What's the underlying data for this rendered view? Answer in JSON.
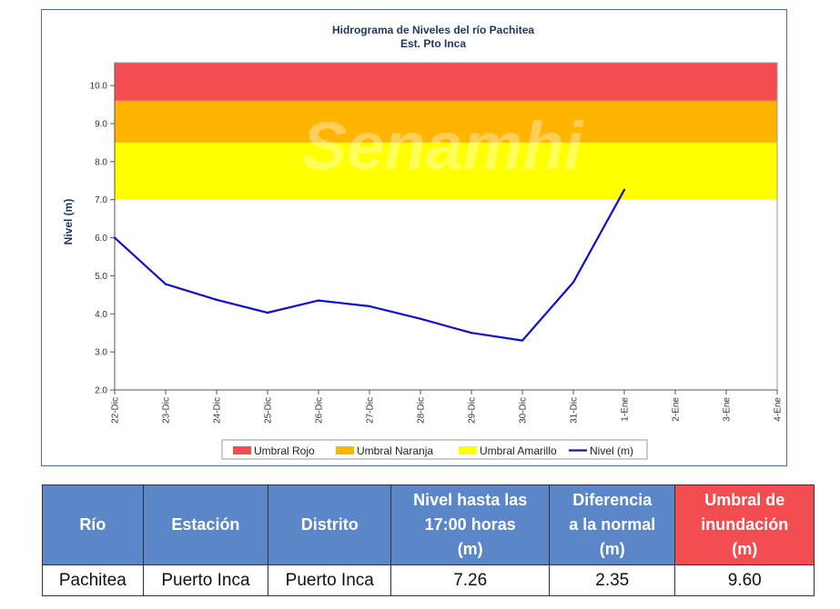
{
  "chart_data": {
    "type": "line",
    "title": "Hidrograma de Niveles del río Pachitea",
    "subtitle": "Est. Pto Inca",
    "ylabel": "Nivel (m)",
    "xlabel": "",
    "ylim": [
      2.0,
      10.6
    ],
    "yticks": [
      "2.0",
      "3.0",
      "4.0",
      "5.0",
      "6.0",
      "7.0",
      "8.0",
      "9.0",
      "10.0"
    ],
    "categories": [
      "22-Dic",
      "23-Dic",
      "24-Dic",
      "25-Dic",
      "26-Dic",
      "27-Dic",
      "28-Dic",
      "29-Dic",
      "30-Dic",
      "31-Dic",
      "1-Ene",
      "2-Ene",
      "3-Ene",
      "4-Ene"
    ],
    "series": [
      {
        "name": "Nivel (m)",
        "color": "#1010c8",
        "values": [
          6.0,
          4.78,
          4.37,
          4.03,
          4.35,
          4.2,
          3.87,
          3.5,
          3.3,
          4.83,
          7.26,
          null,
          null,
          null
        ]
      }
    ],
    "bands": [
      {
        "name": "Umbral Rojo",
        "color": "#f24e52",
        "from": 9.6,
        "to": 10.6
      },
      {
        "name": "Umbral Naranja",
        "color": "#ffb400",
        "from": 8.5,
        "to": 9.6
      },
      {
        "name": "Umbral Amarillo",
        "color": "#ffff00",
        "from": 7.0,
        "to": 8.5
      }
    ],
    "legend_position": "bottom",
    "grid": false,
    "watermark": "Senamhi"
  },
  "table": {
    "headers": [
      "Río",
      "Estación",
      "Distrito",
      "Nivel hasta las 17:00 horas (m)",
      "Diferencia a la normal (m)",
      "Umbral de inundación (m)"
    ],
    "header_lines": [
      [
        "Río"
      ],
      [
        "Estación"
      ],
      [
        "Distrito"
      ],
      [
        "Nivel hasta las",
        "17:00 horas",
        "(m)"
      ],
      [
        "Diferencia",
        "a la normal",
        "(m)"
      ],
      [
        "Umbral de",
        "inundación",
        "(m)"
      ]
    ],
    "row": [
      "Pachitea",
      "Puerto Inca",
      "Puerto Inca",
      "7.26",
      "2.35",
      "9.60"
    ],
    "header_color": "#5b87c9",
    "flood_header_color": "#f24e52"
  }
}
